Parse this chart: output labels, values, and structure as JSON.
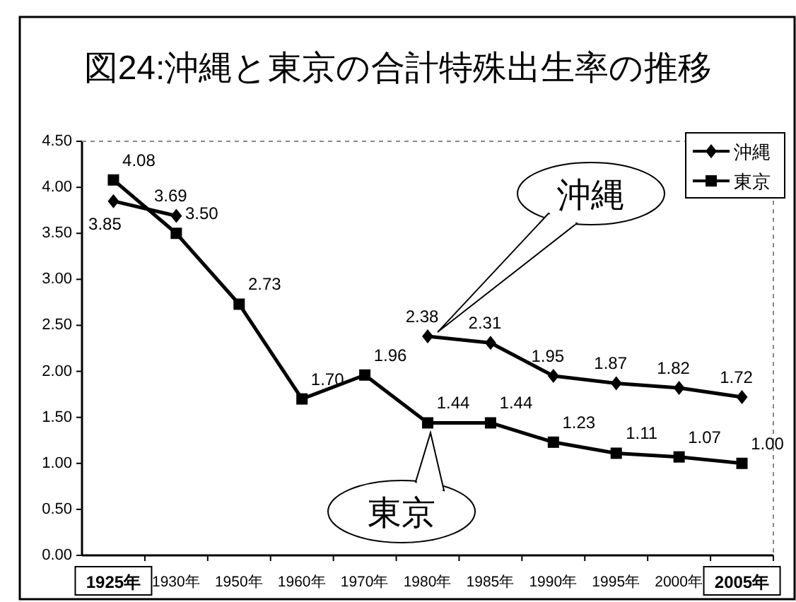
{
  "chart_data": {
    "type": "line",
    "title": "図24:沖縄と東京の合計特殊出生率の推移",
    "categories": [
      "1925年",
      "1930年",
      "1950年",
      "1960年",
      "1970年",
      "1980年",
      "1985年",
      "1990年",
      "1995年",
      "2000年",
      "2005年"
    ],
    "series": [
      {
        "name": "沖縄",
        "color": "#000000",
        "marker": "diamond",
        "values": [
          3.85,
          3.69,
          null,
          null,
          null,
          2.38,
          2.31,
          1.95,
          1.87,
          1.82,
          1.72
        ],
        "value_labels": [
          "3.85",
          "3.69",
          null,
          null,
          null,
          "2.38",
          "2.31",
          "1.95",
          "1.87",
          "1.82",
          "1.72"
        ]
      },
      {
        "name": "東京",
        "color": "#000000",
        "marker": "square",
        "values": [
          4.08,
          3.5,
          2.73,
          1.7,
          1.96,
          1.44,
          1.44,
          1.23,
          1.11,
          1.07,
          1.0
        ],
        "value_labels": [
          "4.08",
          "3.50",
          "2.73",
          "1.70",
          "1.96",
          "1.44",
          "1.44",
          "1.23",
          "1.11",
          "1.07",
          "1.00"
        ]
      }
    ],
    "ylim": [
      0,
      4.5
    ],
    "yticks": [
      {
        "value": 0,
        "label": "0.00"
      },
      {
        "value": 0.5,
        "label": "0.50"
      },
      {
        "value": 1,
        "label": "1.00"
      },
      {
        "value": 1.5,
        "label": "1.50"
      },
      {
        "value": 2,
        "label": "2.00"
      },
      {
        "value": 2.5,
        "label": "2.50"
      },
      {
        "value": 3,
        "label": "3.00"
      },
      {
        "value": 3.5,
        "label": "3.50"
      },
      {
        "value": 4,
        "label": "4.00"
      },
      {
        "value": 4.5,
        "label": "4.50"
      }
    ],
    "data_labels": true,
    "legend": "top right",
    "grid": false,
    "line_style": "solid",
    "annotations": [
      "沖縄",
      {
        "text": "東京",
        "x": "1980年",
        "y": 1.44
      }
    ]
  }
}
